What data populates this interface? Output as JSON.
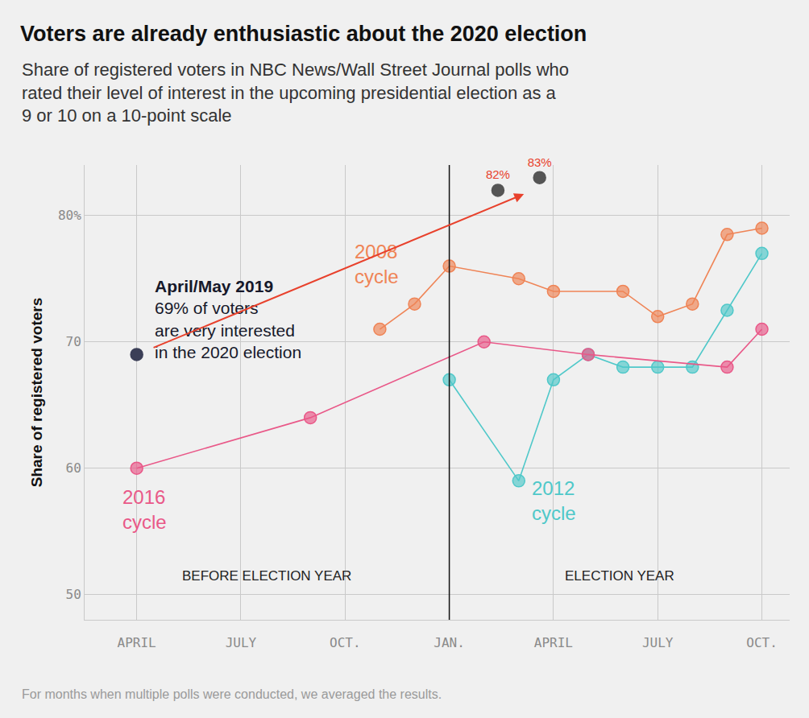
{
  "chart_data": {
    "type": "line",
    "title": "Voters are already enthusiastic about the 2020 election",
    "subtitle": "Share of registered voters in NBC News/Wall Street Journal polls who\nrated their level of interest in the upcoming presidential election as a\n9 or 10 on a 10-point scale",
    "y_label": "Share of registered voters",
    "note": "For months when multiple polls were conducted, we averaged the results.",
    "xlim": [
      -1.5,
      18.8
    ],
    "xticks": [
      {
        "value": 0,
        "label": "APRIL"
      },
      {
        "value": 3,
        "label": "JULY"
      },
      {
        "value": 6,
        "label": "OCT."
      },
      {
        "value": 9,
        "label": "JAN."
      },
      {
        "value": 12,
        "label": "APRIL"
      },
      {
        "value": 15,
        "label": "JULY"
      },
      {
        "value": 18,
        "label": "OCT."
      }
    ],
    "ylim": [
      48,
      84
    ],
    "yticks": [
      50,
      60,
      70,
      {
        "value": 80,
        "label": "80%"
      }
    ],
    "grid": true,
    "marker": "circle",
    "election_year_start": 9,
    "periods": [
      "BEFORE ELECTION YEAR",
      "ELECTION YEAR"
    ],
    "annotations": [
      {
        "text": "69% of voters\nare very interested\nin the 2020 election"
      }
    ],
    "series": [
      {
        "name": "2008 cycle",
        "color": "#ef8456",
        "line_style": "solid",
        "x": [
          7,
          8,
          9,
          11,
          12,
          14,
          15,
          16,
          17,
          18
        ],
        "values": [
          71,
          73,
          76,
          75,
          74,
          74,
          72,
          73,
          78.5,
          79
        ]
      },
      {
        "name": "2012 cycle",
        "color": "#4fc8c9",
        "line_style": "solid",
        "x": [
          9,
          11,
          12,
          13,
          14,
          15,
          16,
          17,
          18
        ],
        "values": [
          67,
          59,
          67,
          69,
          68,
          68,
          68,
          72.5,
          77
        ]
      },
      {
        "name": "2016 cycle",
        "color": "#e95888",
        "line_style": "solid",
        "x": [
          0,
          5,
          10,
          13,
          17,
          18
        ],
        "values": [
          60,
          64,
          70,
          69,
          68,
          71
        ]
      },
      {
        "name": "April/May 2019",
        "color": "#3b3f57",
        "line_style": "none",
        "x": [
          0
        ],
        "values": [
          69
        ]
      },
      {
        "color": "#555555",
        "line_style": "none",
        "data_labels": true,
        "x": [
          10.4,
          11.6
        ],
        "values": [
          82,
          83
        ],
        "value_labels": [
          "82%",
          "83%"
        ]
      }
    ]
  }
}
